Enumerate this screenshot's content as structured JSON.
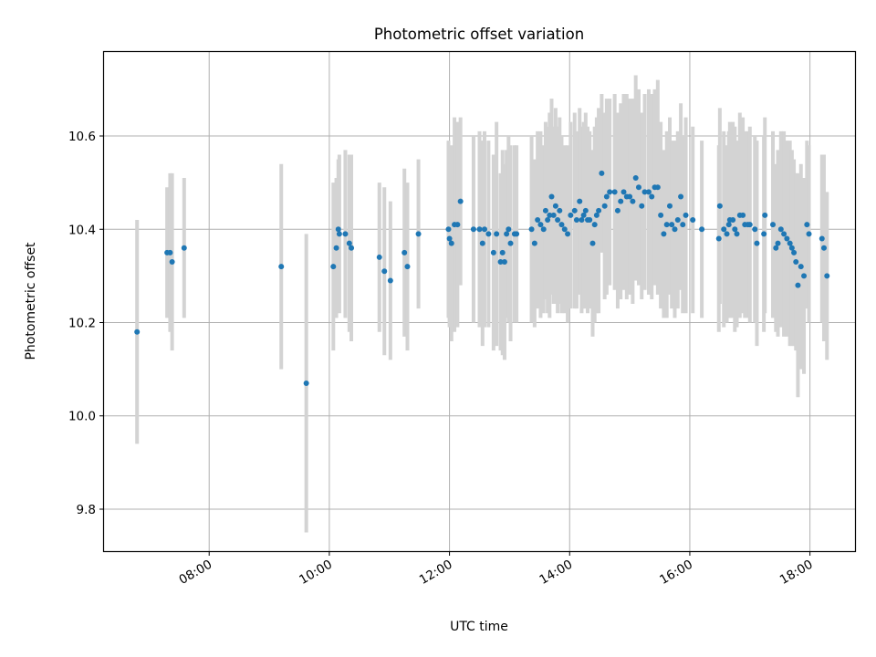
{
  "chart_data": {
    "type": "scatter",
    "title": "Photometric offset variation",
    "xlabel": "UTC time",
    "ylabel": "Photometric offset",
    "x_is_time": true,
    "xlim": [
      "06:15",
      "18:45"
    ],
    "ylim": [
      9.71,
      10.78
    ],
    "xticks": [
      "08:00",
      "10:00",
      "12:00",
      "14:00",
      "16:00",
      "18:00"
    ],
    "yticks": [
      "9.8",
      "10.0",
      "10.2",
      "10.4",
      "10.6"
    ],
    "grid": true,
    "legend": "none",
    "colors": {
      "marker": "#1f77b4",
      "errorbar": "#d3d3d3",
      "grid": "#b0b0b0"
    },
    "series": [
      {
        "x": [
          "06:48",
          "07:18",
          "07:21",
          "07:23",
          "07:35",
          "09:12",
          "09:37",
          "10:04",
          "10:07",
          "10:09",
          "10:10",
          "10:16",
          "10:20",
          "10:22",
          "10:50",
          "10:55",
          "11:01",
          "11:15",
          "11:18",
          "11:29",
          "11:59",
          "12:00",
          "12:02",
          "12:05",
          "12:08",
          "12:11",
          "12:24",
          "12:30",
          "12:33",
          "12:35",
          "12:39",
          "12:44",
          "12:47",
          "12:51",
          "12:53",
          "12:55",
          "12:57",
          "12:59",
          "13:01",
          "13:05",
          "13:07",
          "13:22",
          "13:25",
          "13:28",
          "13:31",
          "13:34",
          "13:36",
          "13:38",
          "13:40",
          "13:42",
          "13:44",
          "13:46",
          "13:48",
          "13:50",
          "13:52",
          "13:55",
          "13:58",
          "14:01",
          "14:05",
          "14:07",
          "14:10",
          "14:12",
          "14:14",
          "14:16",
          "14:18",
          "14:20",
          "14:23",
          "14:25",
          "14:27",
          "14:29",
          "14:32",
          "14:35",
          "14:37",
          "14:40",
          "14:45",
          "14:48",
          "14:51",
          "14:54",
          "14:57",
          "15:00",
          "15:03",
          "15:06",
          "15:09",
          "15:12",
          "15:15",
          "15:19",
          "15:22",
          "15:25",
          "15:28",
          "15:31",
          "15:34",
          "15:37",
          "15:40",
          "15:42",
          "15:45",
          "15:48",
          "15:51",
          "15:53",
          "15:56",
          "16:03",
          "16:12",
          "16:29",
          "16:30",
          "16:34",
          "16:37",
          "16:39",
          "16:40",
          "16:43",
          "16:45",
          "16:47",
          "16:50",
          "16:53",
          "16:55",
          "16:58",
          "17:00",
          "17:05",
          "17:07",
          "17:14",
          "17:15",
          "17:23",
          "17:26",
          "17:28",
          "17:31",
          "17:34",
          "17:37",
          "17:40",
          "17:42",
          "17:44",
          "17:46",
          "17:48",
          "17:51",
          "17:54",
          "17:57",
          "17:59",
          "18:12",
          "18:14",
          "18:17"
        ],
        "y": [
          10.18,
          10.35,
          10.35,
          10.33,
          10.36,
          10.32,
          10.07,
          10.32,
          10.36,
          10.4,
          10.39,
          10.39,
          10.37,
          10.36,
          10.34,
          10.31,
          10.29,
          10.35,
          10.32,
          10.39,
          10.4,
          10.38,
          10.37,
          10.41,
          10.41,
          10.46,
          10.4,
          10.4,
          10.37,
          10.4,
          10.39,
          10.35,
          10.39,
          10.33,
          10.35,
          10.33,
          10.39,
          10.4,
          10.37,
          10.39,
          10.39,
          10.4,
          10.37,
          10.42,
          10.41,
          10.4,
          10.44,
          10.42,
          10.43,
          10.47,
          10.43,
          10.45,
          10.42,
          10.44,
          10.41,
          10.4,
          10.39,
          10.43,
          10.44,
          10.42,
          10.46,
          10.42,
          10.43,
          10.44,
          10.42,
          10.42,
          10.37,
          10.41,
          10.43,
          10.44,
          10.52,
          10.45,
          10.47,
          10.48,
          10.48,
          10.44,
          10.46,
          10.48,
          10.47,
          10.47,
          10.46,
          10.51,
          10.49,
          10.45,
          10.48,
          10.48,
          10.47,
          10.49,
          10.49,
          10.43,
          10.39,
          10.41,
          10.45,
          10.41,
          10.4,
          10.42,
          10.47,
          10.41,
          10.43,
          10.42,
          10.4,
          10.38,
          10.45,
          10.4,
          10.39,
          10.41,
          10.42,
          10.42,
          10.4,
          10.39,
          10.43,
          10.43,
          10.41,
          10.41,
          10.41,
          10.4,
          10.37,
          10.39,
          10.43,
          10.41,
          10.36,
          10.37,
          10.4,
          10.39,
          10.38,
          10.37,
          10.36,
          10.35,
          10.33,
          10.28,
          10.32,
          10.3,
          10.41,
          10.39,
          10.38,
          10.36,
          10.3
        ],
        "err": [
          0.24,
          0.14,
          0.17,
          0.19,
          0.15,
          0.22,
          0.32,
          0.18,
          0.15,
          0.15,
          0.17,
          0.18,
          0.19,
          0.2,
          0.16,
          0.18,
          0.17,
          0.18,
          0.18,
          0.16,
          0.19,
          0.19,
          0.21,
          0.23,
          0.22,
          0.18,
          0.2,
          0.21,
          0.22,
          0.21,
          0.2,
          0.21,
          0.24,
          0.19,
          0.22,
          0.21,
          0.18,
          0.2,
          0.21,
          0.19,
          0.19,
          0.2,
          0.18,
          0.19,
          0.2,
          0.18,
          0.19,
          0.2,
          0.22,
          0.21,
          0.19,
          0.21,
          0.2,
          0.2,
          0.19,
          0.18,
          0.19,
          0.2,
          0.21,
          0.19,
          0.2,
          0.2,
          0.2,
          0.21,
          0.2,
          0.19,
          0.2,
          0.21,
          0.21,
          0.22,
          0.17,
          0.2,
          0.21,
          0.2,
          0.21,
          0.21,
          0.21,
          0.21,
          0.22,
          0.21,
          0.22,
          0.22,
          0.21,
          0.2,
          0.21,
          0.22,
          0.22,
          0.21,
          0.23,
          0.2,
          0.18,
          0.2,
          0.19,
          0.18,
          0.19,
          0.19,
          0.2,
          0.19,
          0.21,
          0.2,
          0.19,
          0.2,
          0.21,
          0.21,
          0.19,
          0.2,
          0.21,
          0.21,
          0.22,
          0.2,
          0.22,
          0.21,
          0.2,
          0.2,
          0.21,
          0.2,
          0.22,
          0.21,
          0.21,
          0.2,
          0.18,
          0.2,
          0.21,
          0.22,
          0.21,
          0.22,
          0.21,
          0.2,
          0.19,
          0.24,
          0.22,
          0.21,
          0.18,
          0.19,
          0.18,
          0.2,
          0.18
        ]
      }
    ]
  }
}
